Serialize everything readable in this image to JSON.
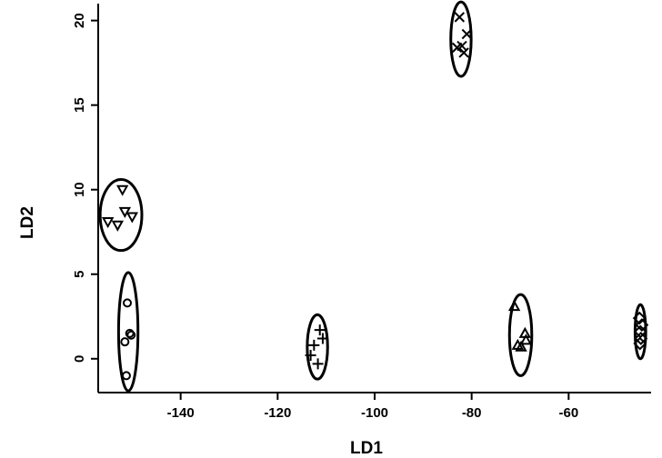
{
  "chart_data": {
    "type": "scatter",
    "title": "",
    "xlabel": "LD1",
    "ylabel": "LD2",
    "xlim": [
      -157,
      -43
    ],
    "ylim": [
      -2,
      21
    ],
    "xticks": [
      -140,
      -120,
      -100,
      -80,
      -60
    ],
    "yticks": [
      0,
      5,
      10,
      15,
      20
    ],
    "grid": false,
    "legend": "none",
    "series": [
      {
        "marker": "circle",
        "points": [
          [
            -151,
            3.3
          ],
          [
            -151.5,
            1.0
          ],
          [
            -150.5,
            1.5
          ],
          [
            -150.2,
            1.4
          ],
          [
            -151.2,
            -1.0
          ]
        ],
        "ellipse": {
          "cx": -150.8,
          "cy": 1.6,
          "rx": 2.0,
          "ry": 3.5
        }
      },
      {
        "marker": "triangle-down",
        "points": [
          [
            -152,
            10.0
          ],
          [
            -155,
            8.1
          ],
          [
            -153,
            7.9
          ],
          [
            -151.5,
            8.7
          ],
          [
            -150,
            8.4
          ]
        ],
        "ellipse": {
          "cx": -152.3,
          "cy": 8.5,
          "rx": 4.3,
          "ry": 2.1
        }
      },
      {
        "marker": "plus",
        "points": [
          [
            -111.3,
            1.7
          ],
          [
            -110.7,
            1.2
          ],
          [
            -112.5,
            0.8
          ],
          [
            -113.2,
            0.2
          ],
          [
            -111.7,
            -0.3
          ]
        ],
        "ellipse": {
          "cx": -111.8,
          "cy": 0.7,
          "rx": 2.1,
          "ry": 1.9
        }
      },
      {
        "marker": "cross",
        "points": [
          [
            -82.5,
            20.2
          ],
          [
            -81.0,
            19.2
          ],
          [
            -83.0,
            18.4
          ],
          [
            -81.6,
            18.1
          ],
          [
            -82.0,
            18.5
          ]
        ],
        "ellipse": {
          "cx": -82.2,
          "cy": 18.9,
          "rx": 2.1,
          "ry": 2.2
        }
      },
      {
        "marker": "triangle-up",
        "points": [
          [
            -71.2,
            3.1
          ],
          [
            -69.0,
            1.5
          ],
          [
            -70.5,
            0.8
          ],
          [
            -69.8,
            0.7
          ],
          [
            -68.8,
            1.1
          ]
        ],
        "ellipse": {
          "cx": -69.9,
          "cy": 1.4,
          "rx": 2.3,
          "ry": 2.4
        }
      },
      {
        "marker": "diamond",
        "points": [
          [
            -45.4,
            2.4
          ],
          [
            -44.9,
            2.0
          ],
          [
            -45.2,
            1.6
          ],
          [
            -45.1,
            1.2
          ],
          [
            -45.3,
            0.9
          ]
        ],
        "ellipse": {
          "cx": -45.2,
          "cy": 1.6,
          "rx": 1.1,
          "ry": 1.6
        }
      }
    ]
  }
}
